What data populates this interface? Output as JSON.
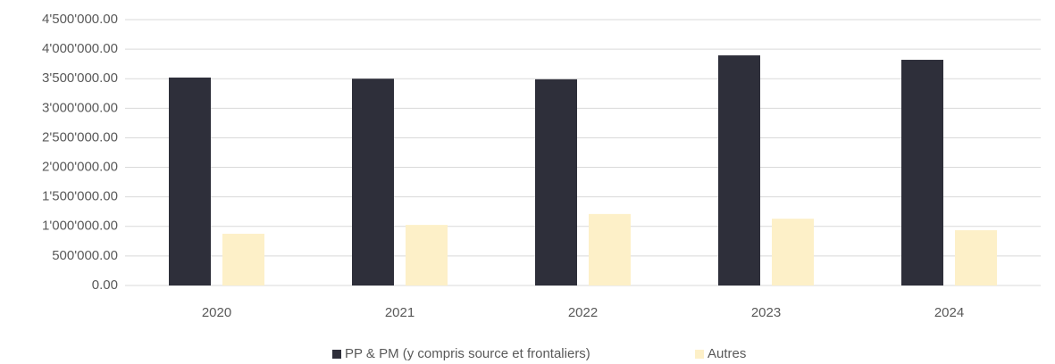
{
  "chart_data": {
    "type": "bar",
    "categories": [
      "2020",
      "2021",
      "2022",
      "2023",
      "2024"
    ],
    "series": [
      {
        "name": "PP & PM (y compris source et frontaliers)",
        "color": "#2e2f3a",
        "values": [
          3520000,
          3500000,
          3490000,
          3895000,
          3820000
        ]
      },
      {
        "name": "Autres",
        "color": "#fdf0c8",
        "values": [
          875000,
          1025000,
          1210000,
          1130000,
          935000
        ]
      }
    ],
    "ylim": [
      0,
      4500000
    ],
    "yticks": [
      {
        "value": 0,
        "label": "0.00"
      },
      {
        "value": 500000,
        "label": "500'000.00"
      },
      {
        "value": 1000000,
        "label": "1'000'000.00"
      },
      {
        "value": 1500000,
        "label": "1'500'000.00"
      },
      {
        "value": 2000000,
        "label": "2'000'000.00"
      },
      {
        "value": 2500000,
        "label": "2'500'000.00"
      },
      {
        "value": 3000000,
        "label": "3'000'000.00"
      },
      {
        "value": 3500000,
        "label": "3'500'000.00"
      },
      {
        "value": 4000000,
        "label": "4'000'000.00"
      },
      {
        "value": 4500000,
        "label": "4'500'000.00"
      }
    ],
    "grid": true,
    "legend": "bottom"
  }
}
